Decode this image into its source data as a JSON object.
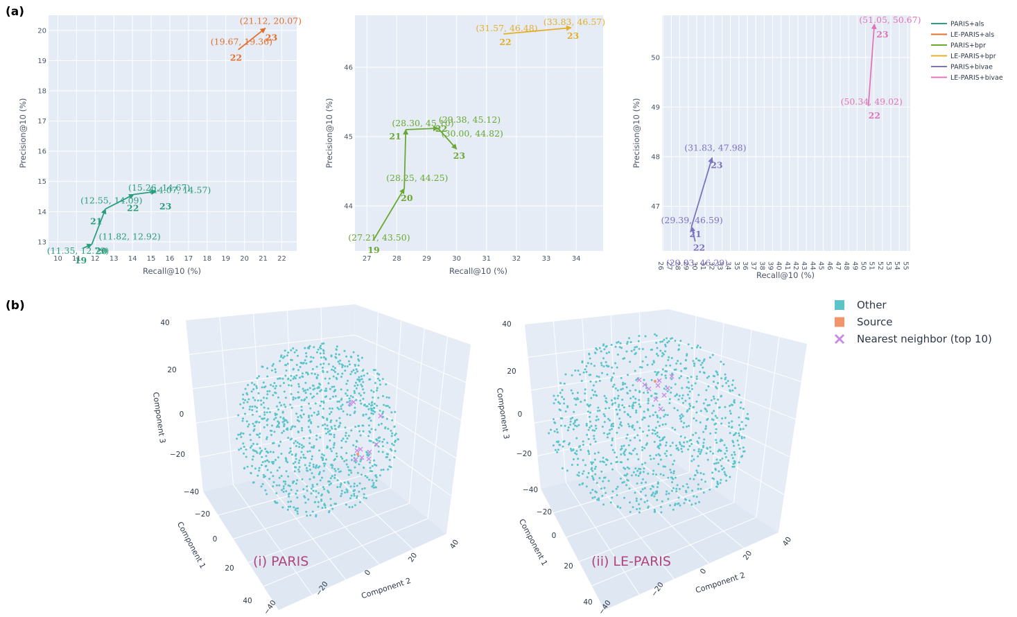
{
  "panels": {
    "a": "(a)",
    "b": "(b)"
  },
  "chart_data": [
    {
      "type": "line",
      "xlabel": "Recall@10 (%)",
      "ylabel": "Precision@10 (%)",
      "xlim": [
        9.5,
        22.8
      ],
      "ylim": [
        12.7,
        20.5
      ],
      "xticks": [
        10,
        11,
        12,
        13,
        14,
        15,
        16,
        17,
        18,
        19,
        20,
        21,
        22
      ],
      "yticks": [
        13,
        14,
        15,
        16,
        17,
        18,
        19,
        20
      ],
      "series": [
        {
          "name": "PARIS+als",
          "color": "#2a9d7c",
          "points": [
            {
              "x": 11.35,
              "y": 12.79,
              "yr": "19",
              "label": "(11.35, 12.79)"
            },
            {
              "x": 11.82,
              "y": 12.92,
              "yr": "20",
              "label": "(11.82, 12.92)"
            },
            {
              "x": 12.55,
              "y": 14.09,
              "yr": "21",
              "label": "(12.55, 14.09)"
            },
            {
              "x": 14.07,
              "y": 14.57,
              "yr": "22",
              "label": "(14.07, 14.57)"
            },
            {
              "x": 15.26,
              "y": 14.67,
              "yr": "23",
              "label": "(15.26, 14.67)"
            }
          ]
        },
        {
          "name": "LE-PARIS+als",
          "color": "#e46f2a",
          "points": [
            {
              "x": 19.67,
              "y": 19.36,
              "yr": "22",
              "label": "(19.67, 19.36)"
            },
            {
              "x": 21.12,
              "y": 20.07,
              "yr": "23",
              "label": "(21.12, 20.07)"
            }
          ]
        }
      ]
    },
    {
      "type": "line",
      "xlabel": "Recall@10 (%)",
      "ylabel": "Precision@10 (%)",
      "xlim": [
        26.6,
        34.9
      ],
      "ylim": [
        43.35,
        46.75
      ],
      "xticks": [
        27,
        28,
        29,
        30,
        31,
        32,
        33,
        34
      ],
      "yticks": [
        44,
        45,
        46
      ],
      "series": [
        {
          "name": "PARIS+bpr",
          "color": "#6aa832",
          "points": [
            {
              "x": 27.21,
              "y": 43.5,
              "yr": "19",
              "label": "(27.21, 43.50)"
            },
            {
              "x": 28.25,
              "y": 44.25,
              "yr": "20",
              "label": "(28.25, 44.25)"
            },
            {
              "x": 28.3,
              "y": 45.1,
              "yr": "21",
              "label": "(28.30, 45.10)"
            },
            {
              "x": 29.38,
              "y": 45.12,
              "yr": "22",
              "label": "(29.38, 45.12)"
            },
            {
              "x": 30.0,
              "y": 44.82,
              "yr": "23",
              "label": "(30.00, 44.82)"
            }
          ]
        },
        {
          "name": "LE-PARIS+bpr",
          "color": "#e3ae2a",
          "points": [
            {
              "x": 31.57,
              "y": 46.48,
              "yr": "22",
              "label": "(31.57, 46.48)"
            },
            {
              "x": 33.83,
              "y": 46.57,
              "yr": "23",
              "label": "(33.83, 46.57)"
            }
          ]
        }
      ]
    },
    {
      "type": "line",
      "xlabel": "Recall@10 (%)",
      "ylabel": "Precision@10 (%)",
      "xlim": [
        25.9,
        55.3
      ],
      "ylim": [
        46.1,
        50.85
      ],
      "xticks": [
        26,
        27,
        28,
        29,
        30,
        31,
        32,
        33,
        34,
        35,
        36,
        37,
        38,
        39,
        40,
        41,
        42,
        43,
        44,
        45,
        46,
        47,
        48,
        49,
        50,
        51,
        52,
        53,
        54,
        55
      ],
      "yticks": [
        47,
        48,
        49,
        50
      ],
      "series": [
        {
          "name": "PARIS+bivae",
          "color": "#7b72c0",
          "points": [
            {
              "x": 29.83,
              "y": 46.29,
              "yr": "22",
              "label": "(29.83, 46.29)"
            },
            {
              "x": 29.39,
              "y": 46.59,
              "yr": "21",
              "label": "(29.39, 46.59)"
            },
            {
              "x": 31.83,
              "y": 47.98,
              "yr": "23",
              "label": "(31.83, 47.98)"
            }
          ]
        },
        {
          "name": "LE-PARIS+bivae",
          "color": "#e373b7",
          "points": [
            {
              "x": 50.34,
              "y": 49.02,
              "yr": "22",
              "label": "(50.34, 49.02)"
            },
            {
              "x": 51.05,
              "y": 50.67,
              "yr": "23",
              "label": "(51.05, 50.67)"
            }
          ]
        }
      ]
    },
    {
      "type": "scatter",
      "subtitle": "(i) PARIS",
      "xlabel": "Component 1",
      "ylabel": "Component 2",
      "zlabel": "Component 3",
      "ticks": [
        "-40",
        "-20",
        "0",
        "20",
        "40"
      ],
      "z_ticks": [
        "40",
        "20",
        "0",
        "−20",
        "−40"
      ],
      "x_ticks": [
        "−20",
        "0",
        "20",
        "40"
      ],
      "y_ticks": [
        "40",
        "20",
        "0",
        "−20",
        "−40"
      ],
      "legend_position": "top-right"
    },
    {
      "type": "scatter",
      "subtitle": "(ii) LE-PARIS",
      "xlabel": "Component 1",
      "ylabel": "Component 2",
      "zlabel": "Component 3",
      "z_ticks": [
        "40",
        "20",
        "0",
        "−20",
        "−40"
      ],
      "x_ticks": [
        "−20",
        "0",
        "20",
        "40"
      ],
      "y_ticks": [
        "40",
        "20",
        "0",
        "−20",
        "−40"
      ]
    }
  ],
  "legend_a": [
    {
      "name": "PARIS+als",
      "color": "#2a9d7c"
    },
    {
      "name": "LE-PARIS+als",
      "color": "#e46f2a"
    },
    {
      "name": "PARIS+bpr",
      "color": "#6aa832"
    },
    {
      "name": "LE-PARIS+bpr",
      "color": "#e3ae2a"
    },
    {
      "name": "PARIS+bivae",
      "color": "#7b72c0"
    },
    {
      "name": "LE-PARIS+bivae",
      "color": "#e373b7"
    }
  ],
  "legend_b": [
    {
      "name": "Other",
      "color": "#5bc4c8",
      "marker": "square"
    },
    {
      "name": "Source",
      "color": "#f2956b",
      "marker": "square"
    },
    {
      "name": "Nearest neighbor (top 10)",
      "color": "#c98ae6",
      "marker": "x"
    }
  ]
}
